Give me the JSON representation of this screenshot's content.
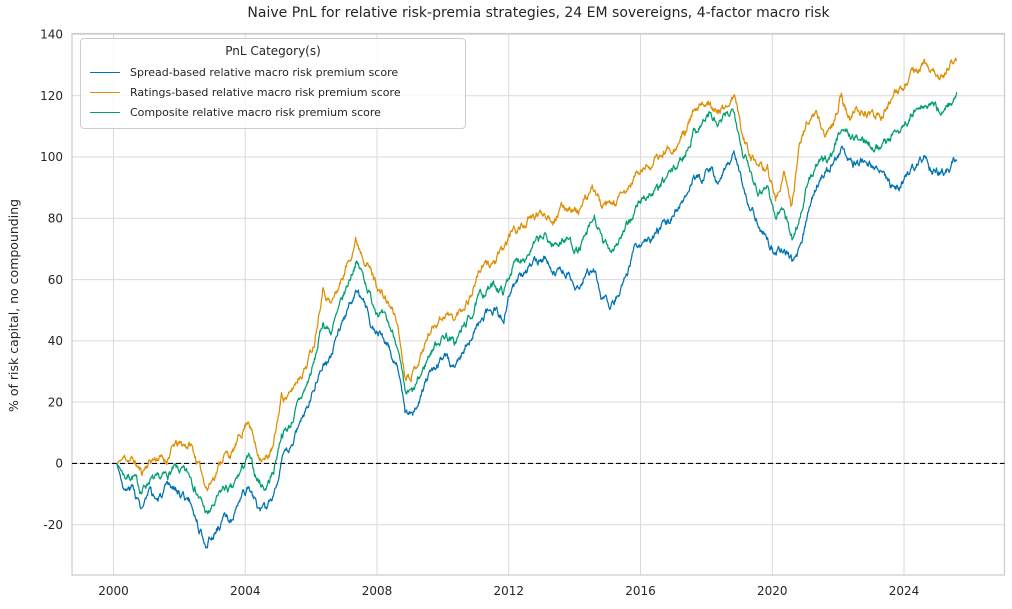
{
  "figure": {
    "title": "Naive PnL for relative risk-premia strategies, 24 EM sovereigns, 4-factor macro risk",
    "y_axis_label": "% of risk capital, no compounding"
  },
  "legend": {
    "title": "PnL Category(s)",
    "entries": [
      "Spread-based relative macro risk premium score",
      "Ratings-based relative macro risk premium score",
      "Composite relative macro risk premium score"
    ]
  },
  "colors": {
    "spread": "#0173b2",
    "ratings": "#de8f05",
    "composite": "#029e73",
    "grid": "#d9d9d9",
    "spine": "#cccccc",
    "text": "#262626",
    "zero_line": "#000000",
    "background": "#ffffff"
  },
  "chart_data": {
    "type": "line",
    "title": "Naive PnL for relative risk-premia strategies, 24 EM sovereigns, 4-factor macro risk",
    "xlabel": "",
    "ylabel": "% of risk capital, no compounding",
    "xlim": [
      1998.74,
      2027.05
    ],
    "ylim": [
      -36.4,
      140.3
    ],
    "x_ticks": [
      2000,
      2004,
      2008,
      2012,
      2016,
      2020,
      2024
    ],
    "y_ticks": [
      -20,
      0,
      20,
      40,
      60,
      80,
      100,
      120,
      140
    ],
    "grid": true,
    "legend_position": "upper left",
    "zero_line": {
      "y": 0,
      "style": "dashed"
    },
    "x_start": 2000.1,
    "x_step": 0.25,
    "x_end": 2025.6,
    "noise_amplitude": 1.1,
    "series": [
      {
        "name": "Spread-based relative macro risk premium score",
        "key": "spread",
        "color": "#0173b2",
        "values": [
          0,
          -9,
          -8,
          -15,
          -10,
          -12,
          -9,
          -8,
          -10,
          -13,
          -21,
          -26,
          -22,
          -18,
          -19,
          -12,
          -8,
          -14,
          -16,
          -10,
          1,
          4,
          12,
          18,
          26,
          34,
          34,
          44,
          50,
          57,
          53,
          44,
          42,
          38,
          33,
          16,
          17,
          22,
          29,
          33,
          35,
          31,
          37,
          41,
          46,
          49,
          50,
          47,
          58,
          61,
          63,
          66,
          66,
          63,
          64,
          63,
          57,
          62,
          64,
          53,
          51,
          56,
          62,
          71,
          71,
          73,
          76,
          79,
          84,
          87,
          93,
          93,
          97,
          93,
          96,
          100,
          91,
          83,
          78,
          73,
          68,
          70,
          66,
          70,
          82,
          91,
          95,
          97,
          103,
          98,
          97,
          99,
          97,
          95,
          91,
          90,
          95,
          97,
          100,
          96,
          95,
          96,
          100
        ]
      },
      {
        "name": "Ratings-based relative macro risk premium score",
        "key": "ratings",
        "color": "#de8f05",
        "values": [
          0,
          2,
          1,
          -3,
          1,
          2,
          1,
          6,
          6,
          6,
          -1,
          -8,
          -3,
          3,
          3,
          9,
          15,
          4,
          1,
          5,
          22,
          22,
          28,
          32,
          40,
          58,
          52,
          58,
          65,
          73,
          68,
          62,
          56,
          52,
          47,
          29,
          30,
          36,
          43,
          47,
          49,
          47,
          51,
          55,
          63,
          65,
          66,
          70,
          76,
          77,
          79,
          81,
          82,
          80,
          83,
          84,
          82,
          86,
          90,
          83,
          84,
          86,
          89,
          94,
          96,
          98,
          100,
          103,
          104,
          108,
          114,
          116,
          119,
          114,
          117,
          120,
          107,
          101,
          95,
          97,
          86,
          94,
          84,
          105,
          113,
          114,
          107,
          111,
          120,
          112,
          116,
          114,
          113,
          114,
          118,
          121,
          125,
          128,
          130,
          128,
          126,
          129,
          132
        ]
      },
      {
        "name": "Composite relative macro risk premium score",
        "key": "composite",
        "color": "#029e73",
        "values": [
          0,
          -4,
          -4,
          -9,
          -5,
          -6,
          -4,
          -2,
          -3,
          -4,
          -11,
          -17,
          -13,
          -8,
          -9,
          -3,
          2,
          -5,
          -8,
          -3,
          10,
          12,
          19,
          25,
          33,
          46,
          43,
          50,
          58,
          66,
          61,
          53,
          49,
          45,
          40,
          22,
          23,
          29,
          36,
          40,
          42,
          39,
          44,
          48,
          54,
          57,
          58,
          56,
          64,
          67,
          69,
          72,
          74,
          71,
          73,
          73,
          69,
          74,
          80,
          72,
          70,
          73,
          77,
          83,
          87,
          88,
          90,
          94,
          97,
          101,
          108,
          111,
          114,
          110,
          113,
          116,
          102,
          95,
          89,
          91,
          80,
          84,
          73,
          81,
          92,
          97,
          99,
          102,
          110,
          107,
          106,
          105,
          104,
          104,
          107,
          109,
          112,
          115,
          116,
          117,
          115,
          117,
          120
        ]
      }
    ]
  }
}
